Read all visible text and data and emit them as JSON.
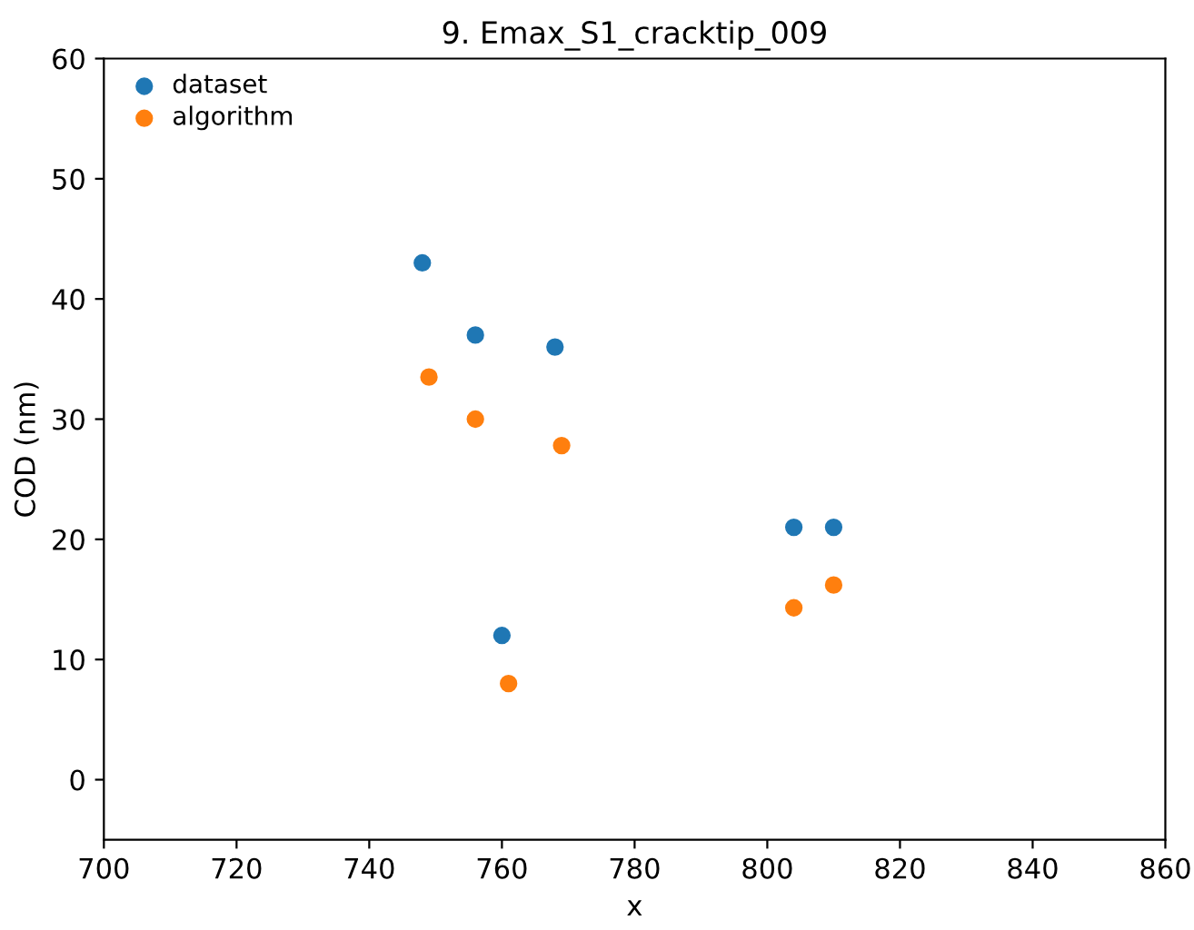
{
  "chart_data": {
    "type": "scatter",
    "title": "9. Emax_S1_cracktip_009",
    "xlabel": "x",
    "ylabel": "COD (nm)",
    "xlim": [
      700,
      860
    ],
    "xticks": [
      700,
      720,
      740,
      760,
      780,
      800,
      820,
      840,
      860
    ],
    "ylim": [
      -5,
      60
    ],
    "yticks": [
      0,
      10,
      20,
      30,
      40,
      50,
      60
    ],
    "grid": false,
    "legend": "top left",
    "marker": "circle",
    "series": [
      {
        "name": "dataset",
        "color": "#1f77b4",
        "x": [
          748,
          756,
          768,
          760,
          804,
          810
        ],
        "values": [
          43,
          37,
          36,
          12,
          21,
          21
        ]
      },
      {
        "name": "algorithm",
        "color": "#ff7f0e",
        "x": [
          749,
          756,
          769,
          761,
          804,
          810
        ],
        "values": [
          33.5,
          30,
          27.8,
          8,
          14.3,
          16.2
        ]
      }
    ]
  }
}
